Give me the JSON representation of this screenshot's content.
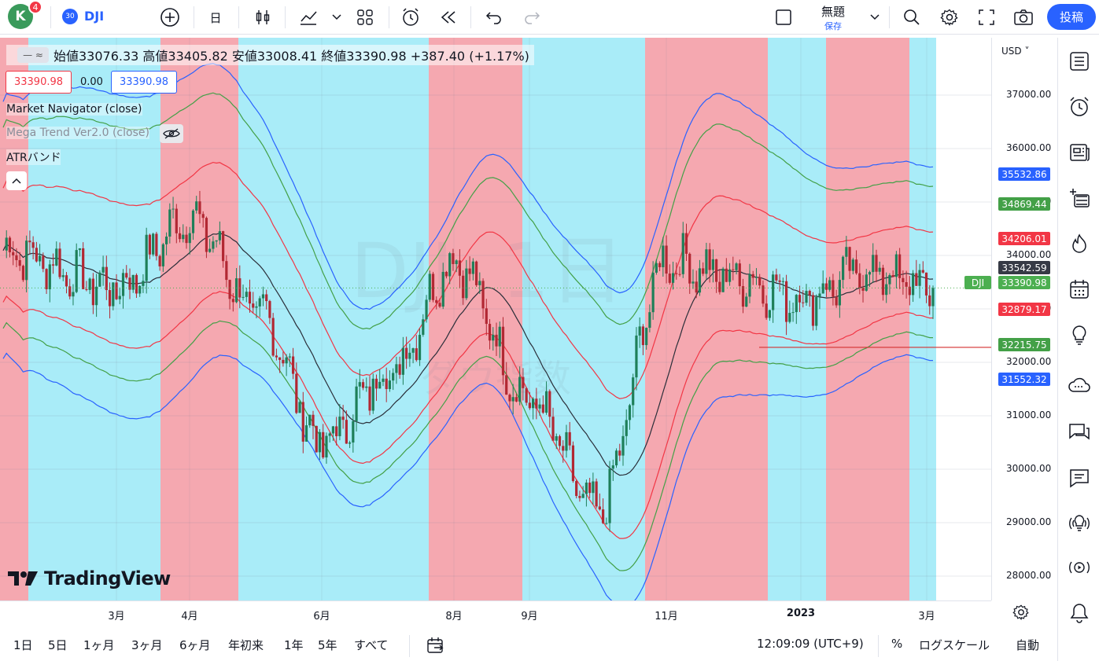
{
  "toolbar": {
    "avatar_letter": "K",
    "notification_count": "4",
    "symbol_badge": "30",
    "symbol": "DJI",
    "interval": "日",
    "layout_name": "無題",
    "layout_status": "保存",
    "post_button": "投稿"
  },
  "legend": {
    "ohlc": "始値33076.33 高値33405.82 安値33008.41 終値33390.98 +387.40 (+1.17%)",
    "box_left": "33390.98",
    "box_mid": "0.00",
    "box_right": "33390.98",
    "indicators": [
      "Market Navigator (close)",
      "Mega Trend Ver2.0 (close)",
      "ATRバンド"
    ]
  },
  "watermark": {
    "symbol": "DJI, 1日",
    "name": "ダウ指数"
  },
  "logo": "TradingView",
  "price_axis": {
    "currency": "USD",
    "ticks": [
      "37000.00",
      "36000.00",
      "35000.00",
      "34000.00",
      "33000.00",
      "32000.00",
      "31000.00",
      "30000.00",
      "29000.00",
      "28000.00"
    ],
    "tags": [
      {
        "label": "35532.86",
        "color": "#2962ff"
      },
      {
        "label": "34869.44",
        "color": "#43a047"
      },
      {
        "label": "34206.01",
        "color": "#f23645"
      },
      {
        "label": "33542.59",
        "color": "#363a45"
      },
      {
        "label": "33390.98",
        "color": "#4caf50"
      },
      {
        "label": "32879.17",
        "color": "#f23645"
      },
      {
        "label": "32215.75",
        "color": "#43a047"
      },
      {
        "label": "31552.32",
        "color": "#2962ff"
      }
    ],
    "symbol_tag": "DJI"
  },
  "time_axis": [
    "3月",
    "4月",
    "6月",
    "8月",
    "9月",
    "11月",
    "2023",
    "3月"
  ],
  "bottom": {
    "ranges": [
      "1日",
      "5日",
      "1ヶ月",
      "3ヶ月",
      "6ヶ月",
      "年初来",
      "1年",
      "5年",
      "すべて"
    ],
    "clock": "12:09:09 (UTC+9)",
    "percent": "%",
    "log_scale": "ログスケール",
    "auto": "自動"
  },
  "chart_data": {
    "type": "candlestick",
    "title": "DJI, 1日",
    "ylim": [
      27600,
      37900
    ],
    "x": [
      "2022-02",
      "2022-03",
      "2022-04",
      "2022-05",
      "2022-06",
      "2022-07",
      "2022-08",
      "2022-09",
      "2022-10",
      "2022-11",
      "2022-12",
      "2023-01",
      "2023-02",
      "2023-03"
    ],
    "close": [
      34100,
      33400,
      34700,
      32900,
      30500,
      31800,
      33900,
      31300,
      29200,
      33900,
      33600,
      33200,
      33700,
      33390.98
    ],
    "bands_last": {
      "upper2": 35532.86,
      "upper1": 34869.44,
      "upper0": 34206.01,
      "mid": 33542.59,
      "lower0": 32879.17,
      "lower1": 32215.75,
      "lower2": 31552.32
    }
  },
  "colors": {
    "red_zone": "#f5a8b0",
    "blue_zone": "#a9ecf8",
    "up": "#26a69a",
    "down": "#b22833",
    "accent": "#2962ff"
  }
}
